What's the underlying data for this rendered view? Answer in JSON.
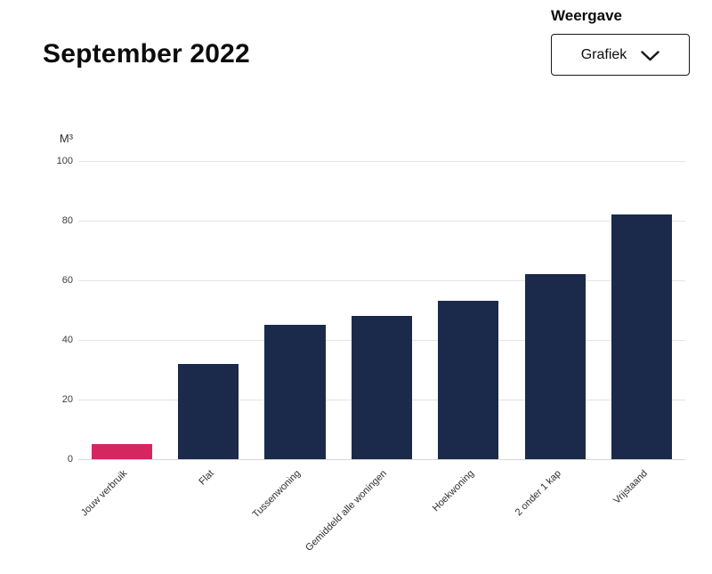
{
  "controls": {
    "label": "Weergave",
    "dropdown": {
      "selected": "Grafiek"
    }
  },
  "colors": {
    "highlight_bar": "#d5265f",
    "default_bar": "#1b2a4a",
    "gridline": "#e4e4e4"
  },
  "chart_data": {
    "type": "bar",
    "title": "September 2022",
    "xlabel": "",
    "ylabel": "M³",
    "ylim": [
      0,
      100
    ],
    "ytick_step": 20,
    "grid": true,
    "legend": false,
    "categories": [
      "Jouw verbruik",
      "Flat",
      "Tussenwoning",
      "Gemiddeld alle woningen",
      "Hoekwoning",
      "2 onder 1 kap",
      "Vrijstaand"
    ],
    "values": [
      5,
      32,
      45,
      48,
      53,
      62,
      82
    ],
    "bar_colors": [
      "#d5265f",
      "#1b2a4a",
      "#1b2a4a",
      "#1b2a4a",
      "#1b2a4a",
      "#1b2a4a",
      "#1b2a4a"
    ]
  }
}
